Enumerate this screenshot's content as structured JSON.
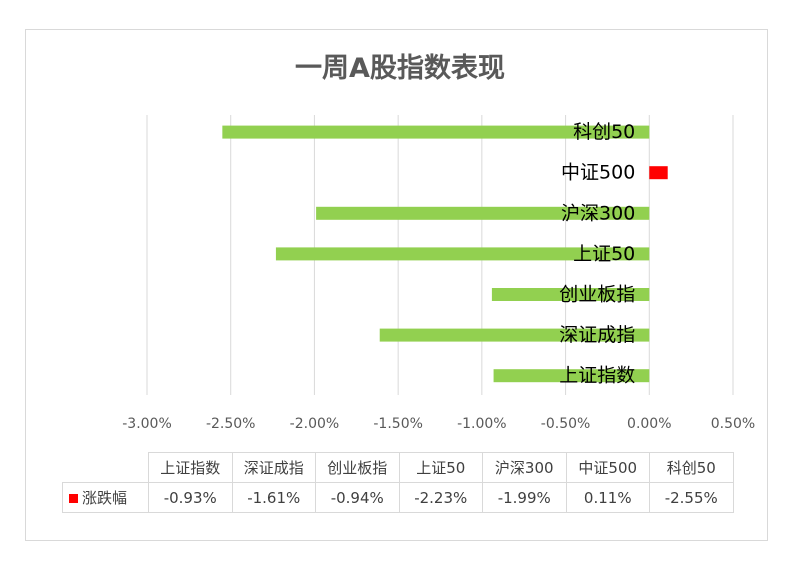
{
  "chart_data": {
    "type": "bar",
    "orientation": "horizontal",
    "title": "一周A股指数表现",
    "categories": [
      "上证指数",
      "深证成指",
      "创业板指",
      "上证50",
      "沪深300",
      "中证500",
      "科创50"
    ],
    "series": [
      {
        "name": "涨跌幅",
        "values": [
          -0.93,
          -1.61,
          -0.94,
          -2.23,
          -1.99,
          0.11,
          -2.55
        ],
        "value_labels": [
          "-0.93%",
          "-1.61%",
          "-0.94%",
          "-2.23%",
          "-1.99%",
          "0.11%",
          "-2.55%"
        ]
      }
    ],
    "xlim": [
      -3.0,
      0.5
    ],
    "x_ticks": [
      -3.0,
      -2.5,
      -2.0,
      -1.5,
      -1.0,
      -0.5,
      0.0,
      0.5
    ],
    "x_tick_labels": [
      "-3.00%",
      "-2.50%",
      "-2.00%",
      "-1.50%",
      "-1.00%",
      "-0.50%",
      "0.00%",
      "0.50%"
    ],
    "grid": true,
    "legend": "data-table",
    "colors": {
      "negative": "#92d050",
      "positive": "#ff0000",
      "grid": "#d9d9d9",
      "text": "#595959"
    }
  }
}
